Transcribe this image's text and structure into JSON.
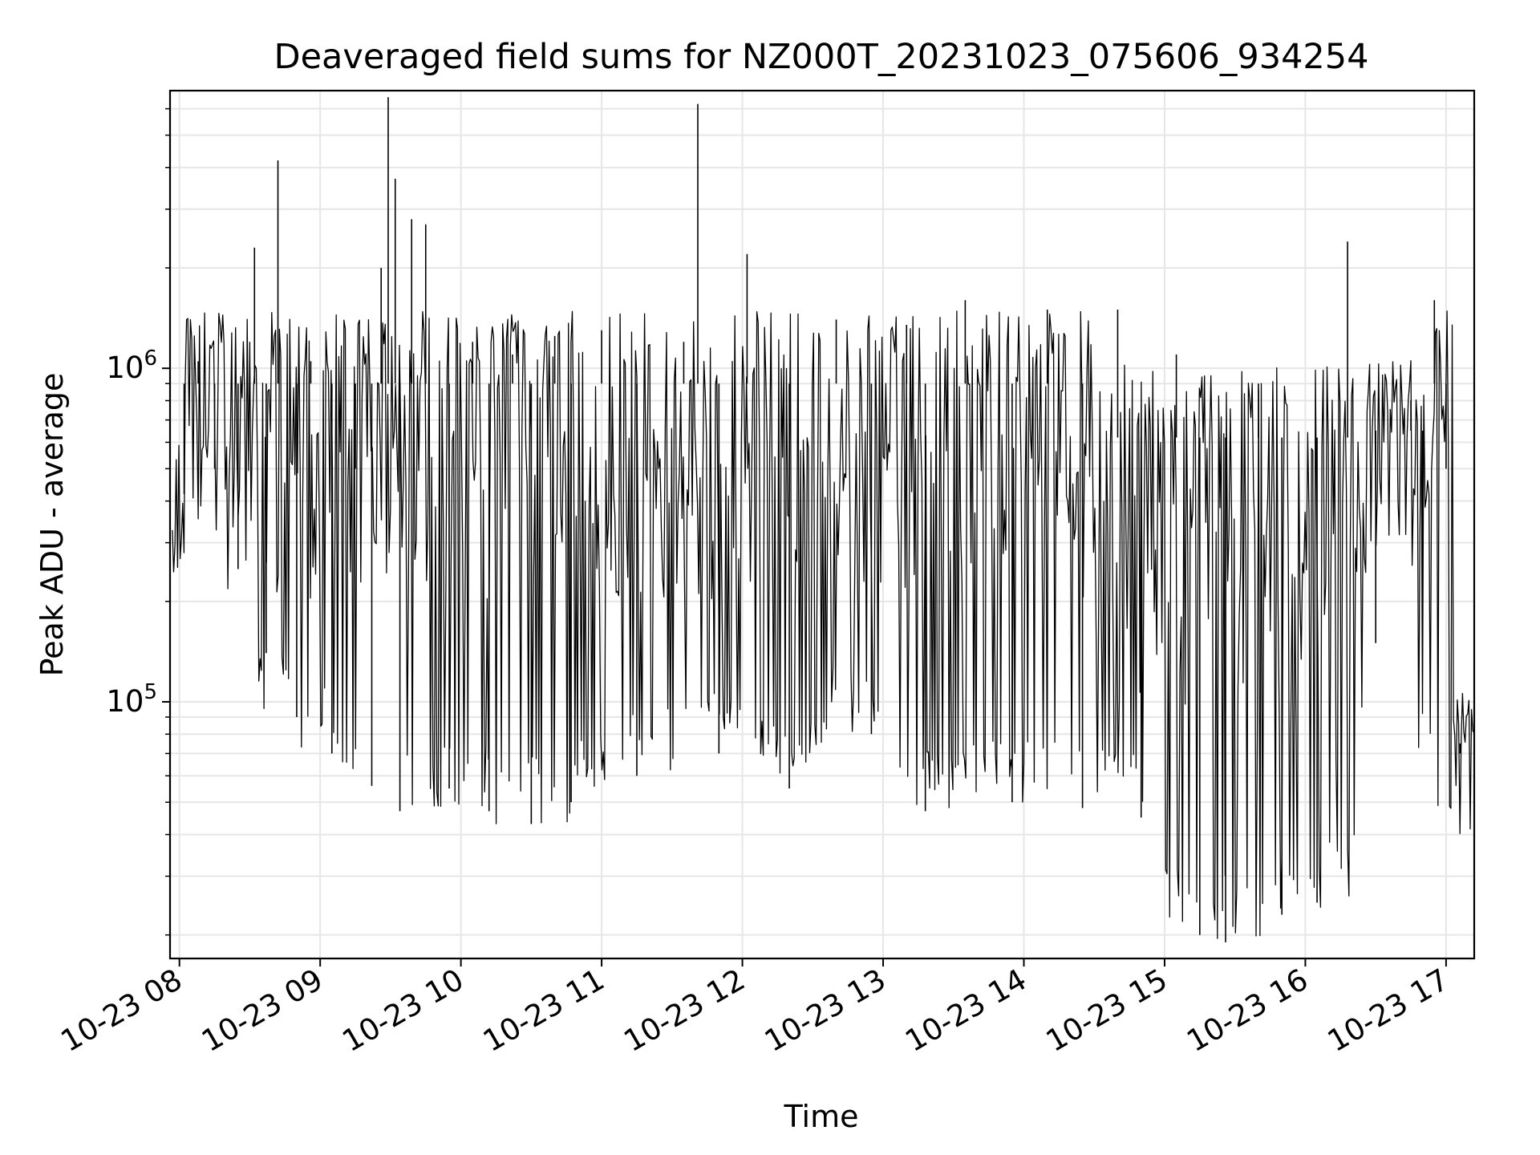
{
  "chart_data": {
    "type": "line",
    "title": "Deaveraged field sums for NZ000T_20231023_075606_934254",
    "xlabel": "Time",
    "ylabel": "Peak ADU - average",
    "yscale": "log",
    "ylim": [
      17000,
      6800000
    ],
    "xlim": [
      "2023-10-23 07:56",
      "2023-10-23 17:12"
    ],
    "x_tick_labels": [
      "10-23 08",
      "10-23 09",
      "10-23 10",
      "10-23 11",
      "10-23 12",
      "10-23 13",
      "10-23 14",
      "10-23 15",
      "10-23 16",
      "10-23 17"
    ],
    "y_tick_labels": [
      {
        "base": "10",
        "exp": "5",
        "value": 100000
      },
      {
        "base": "10",
        "exp": "6",
        "value": 1000000
      }
    ],
    "grid": true,
    "line_color": "#000000",
    "series": [
      {
        "points": [
          [
            "2023-10-23 07:56",
            330000
          ],
          [
            "2023-10-23 08:02",
            420000
          ],
          [
            "2023-10-23 08:08",
            1050000
          ],
          [
            "2023-10-23 08:15",
            500000
          ],
          [
            "2023-10-23 08:25",
            250000
          ],
          [
            "2023-10-23 08:32",
            2300000
          ],
          [
            "2023-10-23 08:37",
            140000
          ],
          [
            "2023-10-23 08:42",
            4200000
          ],
          [
            "2023-10-23 08:50",
            90000
          ],
          [
            "2023-10-23 08:56",
            1050000
          ],
          [
            "2023-10-23 09:05",
            70000
          ],
          [
            "2023-10-23 09:15",
            500000
          ],
          [
            "2023-10-23 09:22",
            56000
          ],
          [
            "2023-10-23 09:26",
            2000000
          ],
          [
            "2023-10-23 09:29",
            6500000
          ],
          [
            "2023-10-23 09:32",
            3700000
          ],
          [
            "2023-10-23 09:34",
            47000
          ],
          [
            "2023-10-23 09:39",
            2800000
          ],
          [
            "2023-10-23 09:45",
            2700000
          ],
          [
            "2023-10-23 09:55",
            55000
          ],
          [
            "2023-10-23 10:05",
            1200000
          ],
          [
            "2023-10-23 10:12",
            47000
          ],
          [
            "2023-10-23 10:22",
            1100000
          ],
          [
            "2023-10-23 10:30",
            43000
          ],
          [
            "2023-10-23 10:40",
            1250000
          ],
          [
            "2023-10-23 10:47",
            50000
          ],
          [
            "2023-10-23 11:00",
            1300000
          ],
          [
            "2023-10-23 11:15",
            60000
          ],
          [
            "2023-10-23 11:35",
            1200000
          ],
          [
            "2023-10-23 11:41",
            6200000
          ],
          [
            "2023-10-23 11:50",
            70000
          ],
          [
            "2023-10-23 12:02",
            2200000
          ],
          [
            "2023-10-23 12:20",
            55000
          ],
          [
            "2023-10-23 12:40",
            1400000
          ],
          [
            "2023-10-23 12:55",
            80000
          ],
          [
            "2023-10-23 13:10",
            1350000
          ],
          [
            "2023-10-23 13:18",
            47000
          ],
          [
            "2023-10-23 13:35",
            1600000
          ],
          [
            "2023-10-23 13:55",
            50000
          ],
          [
            "2023-10-23 14:10",
            1500000
          ],
          [
            "2023-10-23 14:25",
            48000
          ],
          [
            "2023-10-23 14:40",
            1500000
          ],
          [
            "2023-10-23 14:50",
            45000
          ],
          [
            "2023-10-23 15:05",
            1100000
          ],
          [
            "2023-10-23 15:15",
            20000
          ],
          [
            "2023-10-23 15:26",
            19000
          ],
          [
            "2023-10-23 15:40",
            900000
          ],
          [
            "2023-10-23 15:50",
            23000
          ],
          [
            "2023-10-23 16:05",
            25000
          ],
          [
            "2023-10-23 16:18",
            2400000
          ],
          [
            "2023-10-23 16:30",
            150000
          ],
          [
            "2023-10-23 16:45",
            800000
          ],
          [
            "2023-10-23 16:50",
            200000
          ],
          [
            "2023-10-23 16:55",
            1600000
          ],
          [
            "2023-10-23 17:00",
            500000
          ],
          [
            "2023-10-23 17:06",
            70000
          ],
          [
            "2023-10-23 17:12",
            40000
          ]
        ]
      }
    ]
  }
}
